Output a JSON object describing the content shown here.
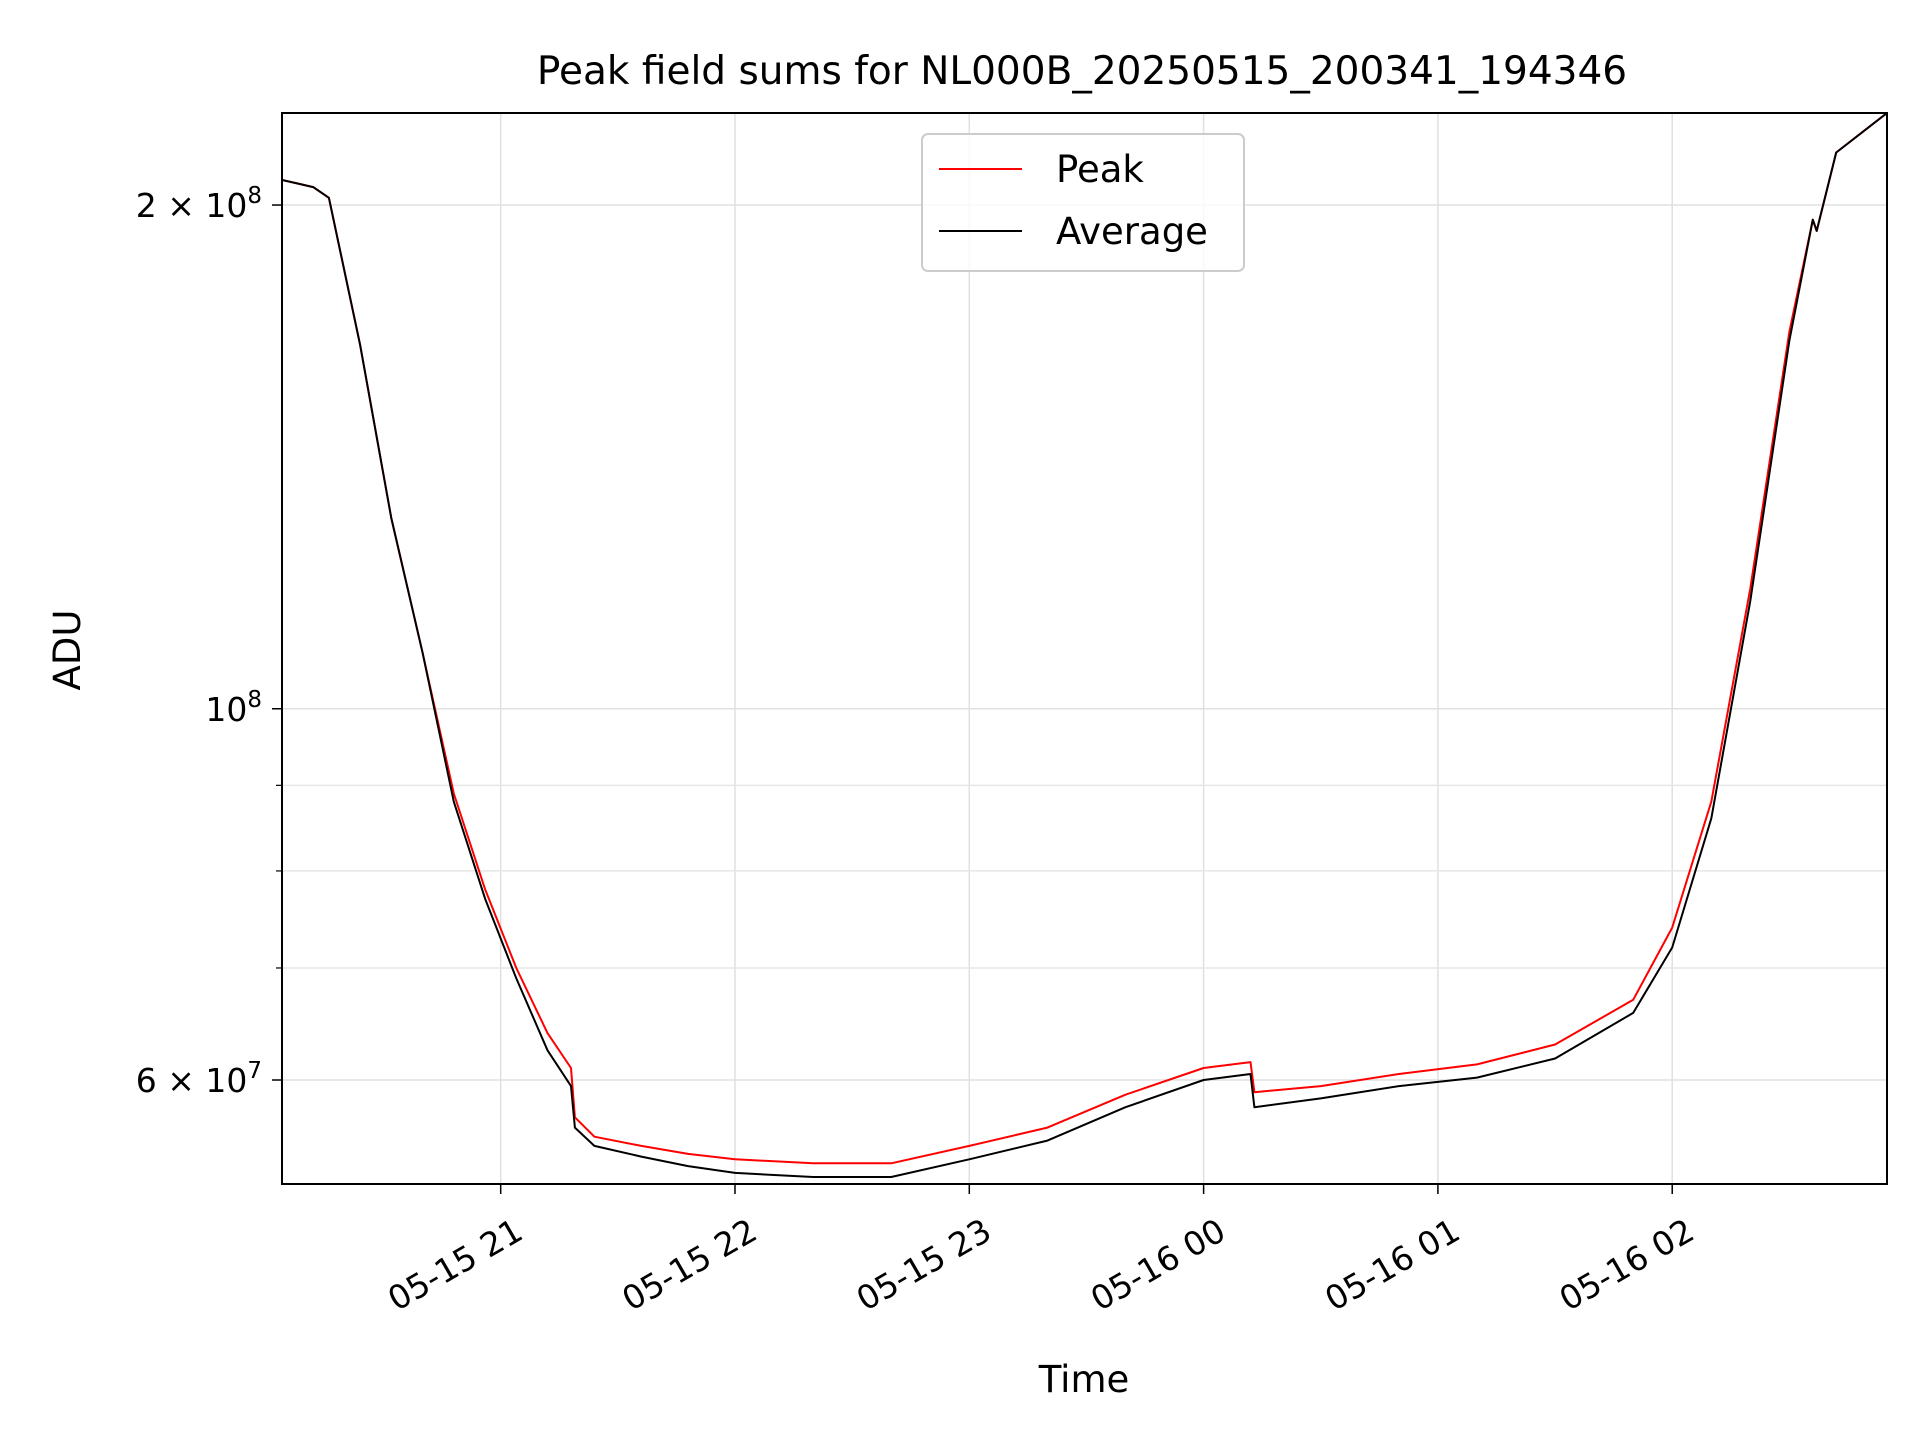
{
  "chart_data": {
    "type": "line",
    "title": "Peak field sums for NL000B_20250515_200341_194346",
    "xlabel": "Time",
    "ylabel": "ADU",
    "y_scale": "log",
    "xlim": [
      "2025-05-15 20:04",
      "2025-05-16 02:55"
    ],
    "ylim": [
      52000000,
      227000000
    ],
    "x_ticks": [
      "2025-05-15 21:00",
      "2025-05-15 22:00",
      "2025-05-15 23:00",
      "2025-05-16 00:00",
      "2025-05-16 01:00",
      "2025-05-16 02:00"
    ],
    "x_tick_labels": [
      "05-15 21",
      "05-15 22",
      "05-15 23",
      "05-16 00",
      "05-16 01",
      "05-16 02"
    ],
    "y_ticks": [
      {
        "value": 200000000,
        "label": "2 × 10^8",
        "mantissa": "2",
        "exponent": "8"
      },
      {
        "value": 100000000,
        "label": "10^8",
        "mantissa": "",
        "exponent": "8"
      },
      {
        "value": 60000000,
        "label": "6 × 10^7",
        "mantissa": "6",
        "exponent": "7"
      }
    ],
    "y_minor_ticks": [
      70000000,
      80000000,
      90000000
    ],
    "grid": true,
    "legend": {
      "position": "upper center"
    },
    "series": [
      {
        "name": "Peak",
        "color": "#ff0000",
        "x": [
          "2025-05-15 20:04",
          "2025-05-15 20:08",
          "2025-05-15 20:12",
          "2025-05-15 20:16",
          "2025-05-15 20:24",
          "2025-05-15 20:32",
          "2025-05-15 20:40",
          "2025-05-15 20:48",
          "2025-05-15 20:56",
          "2025-05-15 21:04",
          "2025-05-15 21:12",
          "2025-05-15 21:18",
          "2025-05-15 21:19",
          "2025-05-15 21:24",
          "2025-05-15 21:36",
          "2025-05-15 21:48",
          "2025-05-15 22:00",
          "2025-05-15 22:20",
          "2025-05-15 22:40",
          "2025-05-15 23:00",
          "2025-05-15 23:20",
          "2025-05-15 23:40",
          "2025-05-16 00:00",
          "2025-05-16 00:12",
          "2025-05-16 00:13",
          "2025-05-16 00:30",
          "2025-05-16 00:50",
          "2025-05-16 01:10",
          "2025-05-16 01:30",
          "2025-05-16 01:50",
          "2025-05-16 02:00",
          "2025-05-16 02:10",
          "2025-05-16 02:20",
          "2025-05-16 02:30",
          "2025-05-16 02:36",
          "2025-05-16 02:37",
          "2025-05-16 02:42",
          "2025-05-16 02:55"
        ],
        "values": [
          207000000,
          206000000,
          205000000,
          202000000,
          165000000,
          130000000,
          108000000,
          89000000,
          78000000,
          70000000,
          64000000,
          61000000,
          57000000,
          55500000,
          54800000,
          54200000,
          53800000,
          53500000,
          53500000,
          54800000,
          56200000,
          58800000,
          61000000,
          61500000,
          59000000,
          59500000,
          60500000,
          61300000,
          63000000,
          67000000,
          74000000,
          88000000,
          118000000,
          168000000,
          196000000,
          193000000,
          215000000,
          227000000
        ]
      },
      {
        "name": "Average",
        "color": "#000000",
        "x": [
          "2025-05-15 20:04",
          "2025-05-15 20:08",
          "2025-05-15 20:12",
          "2025-05-15 20:16",
          "2025-05-15 20:24",
          "2025-05-15 20:32",
          "2025-05-15 20:40",
          "2025-05-15 20:48",
          "2025-05-15 20:56",
          "2025-05-15 21:04",
          "2025-05-15 21:12",
          "2025-05-15 21:18",
          "2025-05-15 21:19",
          "2025-05-15 21:24",
          "2025-05-15 21:36",
          "2025-05-15 21:48",
          "2025-05-15 22:00",
          "2025-05-15 22:20",
          "2025-05-15 22:40",
          "2025-05-15 23:00",
          "2025-05-15 23:20",
          "2025-05-15 23:40",
          "2025-05-16 00:00",
          "2025-05-16 00:12",
          "2025-05-16 00:13",
          "2025-05-16 00:30",
          "2025-05-16 00:50",
          "2025-05-16 01:10",
          "2025-05-16 01:30",
          "2025-05-16 01:50",
          "2025-05-16 02:00",
          "2025-05-16 02:10",
          "2025-05-16 02:20",
          "2025-05-16 02:30",
          "2025-05-16 02:36",
          "2025-05-16 02:37",
          "2025-05-16 02:42",
          "2025-05-16 02:55"
        ],
        "values": [
          207000000,
          206000000,
          205000000,
          202000000,
          165000000,
          130000000,
          108000000,
          88000000,
          77000000,
          69000000,
          62500000,
          59500000,
          56200000,
          54800000,
          54000000,
          53300000,
          52800000,
          52500000,
          52500000,
          53800000,
          55200000,
          57800000,
          60000000,
          60500000,
          57800000,
          58500000,
          59500000,
          60200000,
          61800000,
          65800000,
          72000000,
          86000000,
          116000000,
          166000000,
          196000000,
          193000000,
          215000000,
          227000000
        ]
      }
    ]
  }
}
